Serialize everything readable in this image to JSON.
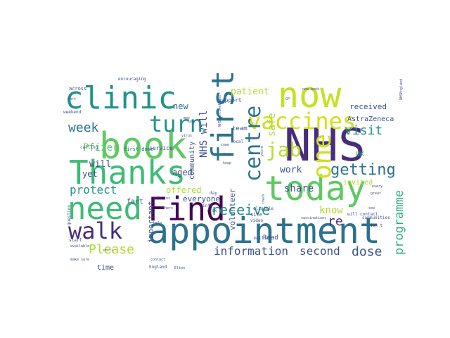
{
  "colors": {
    "background": "#ffffff",
    "palette": [
      "#440154",
      "#472d7b",
      "#3b528b",
      "#2c728e",
      "#21918c",
      "#28ae80",
      "#5ec962",
      "#addc30",
      "#fde725"
    ]
  },
  "words": [
    {
      "text": "NHS",
      "size": 64,
      "color": "#472d7b",
      "vertical": false
    },
    {
      "text": "appointment",
      "size": 50,
      "color": "#2c728e",
      "vertical": false
    },
    {
      "text": "today",
      "size": 48,
      "color": "#5ec962",
      "vertical": false
    },
    {
      "text": "book",
      "size": 52,
      "color": "#5ec962",
      "vertical": false
    },
    {
      "text": "now",
      "size": 50,
      "color": "#c5e021",
      "vertical": false
    },
    {
      "text": "Thanks",
      "size": 46,
      "color": "#3dbc74",
      "vertical": false
    },
    {
      "text": "Find",
      "size": 46,
      "color": "#440154",
      "vertical": false
    },
    {
      "text": "clinic",
      "size": 44,
      "color": "#21918c",
      "vertical": false
    },
    {
      "text": "need",
      "size": 44,
      "color": "#3dbc74",
      "vertical": false
    },
    {
      "text": "first",
      "size": 44,
      "color": "#2c728e",
      "vertical": true
    },
    {
      "text": "vaccines",
      "size": 32,
      "color": "#d0e11c",
      "vertical": false
    },
    {
      "text": "one",
      "size": 36,
      "color": "#d0e11c",
      "vertical": true
    },
    {
      "text": "centre",
      "size": 30,
      "color": "#2c728e",
      "vertical": true
    },
    {
      "text": "turn",
      "size": 32,
      "color": "#21918c",
      "vertical": false
    },
    {
      "text": "walk",
      "size": 32,
      "color": "#472d7b",
      "vertical": false
    },
    {
      "text": "jab",
      "size": 28,
      "color": "#b5de2b",
      "vertical": false
    },
    {
      "text": "getting",
      "size": 22,
      "color": "#2c728e",
      "vertical": false
    },
    {
      "text": "receive",
      "size": 20,
      "color": "#21918c",
      "vertical": false
    },
    {
      "text": "Please",
      "size": 18,
      "color": "#addc30",
      "vertical": false
    },
    {
      "text": "information",
      "size": 16,
      "color": "#3b528b",
      "vertical": false
    },
    {
      "text": "second",
      "size": 16,
      "color": "#3b528b",
      "vertical": false
    },
    {
      "text": "dose",
      "size": 18,
      "color": "#3b528b",
      "vertical": false
    },
    {
      "text": "programme",
      "size": 17,
      "color": "#28ae80",
      "vertical": true
    },
    {
      "text": "week",
      "size": 18,
      "color": "#2c728e",
      "vertical": false
    },
    {
      "text": "visit",
      "size": 18,
      "color": "#21918c",
      "vertical": false
    },
    {
      "text": "protect",
      "size": 16,
      "color": "#21918c",
      "vertical": false
    },
    {
      "text": "Pfizer",
      "size": 14,
      "color": "#5ec962",
      "vertical": false
    },
    {
      "text": "know",
      "size": 14,
      "color": "#addc30",
      "vertical": false
    },
    {
      "text": "re",
      "size": 18,
      "color": "#472d7b",
      "vertical": false
    },
    {
      "text": "share",
      "size": 14,
      "color": "#3b528b",
      "vertical": false
    },
    {
      "text": "work",
      "size": 13,
      "color": "#3b528b",
      "vertical": false
    },
    {
      "text": "patient",
      "size": 13,
      "color": "#addc30",
      "vertical": false
    },
    {
      "text": "safe",
      "size": 14,
      "color": "#addc30",
      "vertical": true
    },
    {
      "text": "NHS will",
      "size": 14,
      "color": "#3b528b",
      "vertical": true
    },
    {
      "text": "will",
      "size": 13,
      "color": "#3b528b",
      "vertical": false
    },
    {
      "text": "new",
      "size": 12,
      "color": "#2c728e",
      "vertical": false
    },
    {
      "text": "yet",
      "size": 12,
      "color": "#3b528b",
      "vertical": false
    },
    {
      "text": "aged",
      "size": 12,
      "color": "#3b528b",
      "vertical": false
    },
    {
      "text": "offered",
      "size": 12,
      "color": "#addc30",
      "vertical": false
    },
    {
      "text": "everyone",
      "size": 11,
      "color": "#3b528b",
      "vertical": false
    },
    {
      "text": "fact",
      "size": 10,
      "color": "#3b528b",
      "vertical": false
    },
    {
      "text": "important",
      "size": 11,
      "color": "#3b528b",
      "vertical": true
    },
    {
      "text": "volunteer",
      "size": 11,
      "color": "#3b528b",
      "vertical": true
    },
    {
      "text": "community",
      "size": 10,
      "color": "#3b528b",
      "vertical": true
    },
    {
      "text": "received",
      "size": 11,
      "color": "#3b528b",
      "vertical": false
    },
    {
      "text": "AstraZeneca",
      "size": 10,
      "color": "#3b528b",
      "vertical": false
    },
    {
      "text": "invited",
      "size": 10,
      "color": "#addc30",
      "vertical": false
    },
    {
      "text": "UK",
      "size": 10,
      "color": "#28ae80",
      "vertical": false
    },
    {
      "text": "time",
      "size": 10,
      "color": "#3b528b",
      "vertical": false
    },
    {
      "text": "Read",
      "size": 9,
      "color": "#3b528b",
      "vertical": false
    },
    {
      "text": "team",
      "size": 9,
      "color": "#3b528b",
      "vertical": false
    },
    {
      "text": "support",
      "size": 8,
      "color": "#3b528b",
      "vertical": false
    },
    {
      "text": "service",
      "size": 8,
      "color": "#3b528b",
      "vertical": false
    },
    {
      "text": "first dose",
      "size": 7,
      "color": "#3b528b",
      "vertical": false
    },
    {
      "text": "across",
      "size": 7,
      "color": "#3b528b",
      "vertical": false
    },
    {
      "text": "encouraging",
      "size": 6,
      "color": "#3b528b",
      "vertical": false
    },
    {
      "text": "calling",
      "size": 6,
      "color": "#3b528b",
      "vertical": false
    },
    {
      "text": "weekend",
      "size": 6,
      "color": "#3b528b",
      "vertical": false
    },
    {
      "text": "question",
      "size": 6,
      "color": "#3b528b",
      "vertical": true
    },
    {
      "text": "staff",
      "size": 6,
      "color": "#3b528b",
      "vertical": false
    },
    {
      "text": "make sure",
      "size": 5,
      "color": "#3b528b",
      "vertical": false
    },
    {
      "text": "contact",
      "size": 5,
      "color": "#3b528b",
      "vertical": false
    },
    {
      "text": "England",
      "size": 6,
      "color": "#3b528b",
      "vertical": false
    },
    {
      "text": "Elton",
      "size": 5,
      "color": "#3b528b",
      "vertical": false
    },
    {
      "text": "local",
      "size": 6,
      "color": "#3b528b",
      "vertical": false
    },
    {
      "text": "million",
      "size": 6,
      "color": "#3b528b",
      "vertical": false
    },
    {
      "text": "video",
      "size": 6,
      "color": "#3b528b",
      "vertical": false
    },
    {
      "text": "site",
      "size": 7,
      "color": "#3b528b",
      "vertical": false
    },
    {
      "text": "eligible",
      "size": 6,
      "color": "#3b528b",
      "vertical": false
    },
    {
      "text": "vaccinations",
      "size": 5,
      "color": "#3b528b",
      "vertical": false
    },
    {
      "text": "will contact",
      "size": 6,
      "color": "#3b528b",
      "vertical": false
    },
    {
      "text": "communities",
      "size": 6,
      "color": "#3b528b",
      "vertical": false
    },
    {
      "text": "see",
      "size": 5,
      "color": "#3b528b",
      "vertical": false
    },
    {
      "text": "great",
      "size": 5,
      "color": "#3b528b",
      "vertical": false
    },
    {
      "text": "every",
      "size": 5,
      "color": "#3b528b",
      "vertical": false
    },
    {
      "text": "don t",
      "size": 6,
      "color": "#3b528b",
      "vertical": false
    },
    {
      "text": "youre",
      "size": 5,
      "color": "#3b528b",
      "vertical": true
    },
    {
      "text": "check",
      "size": 5,
      "color": "#3b528b",
      "vertical": true
    },
    {
      "text": "keep",
      "size": 5,
      "color": "#3b528b",
      "vertical": false
    },
    {
      "text": "come",
      "size": 5,
      "color": "#3b528b",
      "vertical": false
    },
    {
      "text": "free",
      "size": 5,
      "color": "#3b528b",
      "vertical": false
    },
    {
      "text": "info",
      "size": 6,
      "color": "#3b528b",
      "vertical": false
    },
    {
      "text": "risk",
      "size": 6,
      "color": "#3b528b",
      "vertical": false
    },
    {
      "text": "day",
      "size": 6,
      "color": "#3b528b",
      "vertical": false
    },
    {
      "text": "walk ins",
      "size": 5,
      "color": "#3b528b",
      "vertical": false
    },
    {
      "text": "help",
      "size": 5,
      "color": "#3b528b",
      "vertical": false
    },
    {
      "text": "others",
      "size": 5,
      "color": "#3b528b",
      "vertical": false
    },
    {
      "text": "available",
      "size": 5,
      "color": "#3b528b",
      "vertical": false
    },
    {
      "text": "still",
      "size": 5,
      "color": "#3b528b",
      "vertical": false
    },
    {
      "text": "take",
      "size": 5,
      "color": "#3b528b",
      "vertical": false
    },
    {
      "text": "virus",
      "size": 5,
      "color": "#3b528b",
      "vertical": false
    },
    {
      "text": "may",
      "size": 5,
      "color": "#3b528b",
      "vertical": false
    },
    {
      "text": "part",
      "size": 5,
      "color": "#3b528b",
      "vertical": false
    },
    {
      "text": "GP",
      "size": 5,
      "color": "#3b528b",
      "vertical": false
    },
    {
      "text": "now book",
      "size": 5,
      "color": "#3b528b",
      "vertical": false
    },
    {
      "text": "NHSEngland",
      "size": 5,
      "color": "#3b528b",
      "vertical": true
    },
    {
      "text": "NHSvaccinations",
      "size": 5,
      "color": "#3b528b",
      "vertical": true
    }
  ]
}
